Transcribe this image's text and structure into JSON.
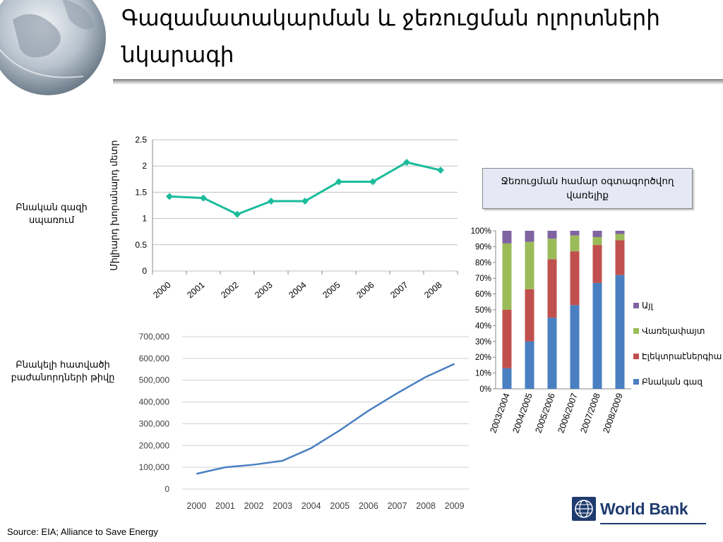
{
  "slide": {
    "title": "Գազամատակարման և ջեռուցման ոլորտների նկարագի",
    "source": "Source: EIA; Alliance to Save Energy",
    "logo_text": "World Bank"
  },
  "labels": {
    "gas_consumption": "Բնական գազի սպառում",
    "households": "Բնակելի հատվածի բաժանորդների թիվը",
    "heating_fuel_box": "Ջեռուցման համար օգտագործվող վառելիք"
  },
  "colors": {
    "line1": "#1abc9c",
    "line2": "#4a7fc1",
    "gas": "#4a7fc1",
    "electricity": "#c0504d",
    "firewood": "#9bbb59",
    "other": "#8064a2",
    "legend_bg": "#e7e8f5"
  },
  "chart_data": [
    {
      "type": "line",
      "x": [
        "2000",
        "2001",
        "2002",
        "2003",
        "2004",
        "2005",
        "2006",
        "2007",
        "2008"
      ],
      "series": [
        {
          "values": [
            1.42,
            1.39,
            1.08,
            1.33,
            1.33,
            1.7,
            1.7,
            2.07,
            1.92
          ]
        }
      ],
      "ylabel": "Միլիարդ խորանարդ մետր",
      "ylim": [
        0,
        2.5
      ],
      "yticks": [
        "0",
        "0.5",
        "1",
        "1.5",
        "2",
        "2.5"
      ],
      "grid": true
    },
    {
      "type": "line",
      "x": [
        "2000",
        "2001",
        "2002",
        "2003",
        "2004",
        "2005",
        "2006",
        "2007",
        "2008",
        "2009"
      ],
      "series": [
        {
          "values": [
            70000,
            100000,
            112000,
            130000,
            188000,
            270000,
            360000,
            440000,
            515000,
            575000
          ]
        }
      ],
      "ylim": [
        0,
        700000
      ],
      "yticks": [
        "0",
        "100,000",
        "200,000",
        "300,000",
        "400,000",
        "500,000",
        "600,000",
        "700,000"
      ],
      "grid": true
    },
    {
      "type": "bar",
      "stacked": true,
      "categories": [
        "2003/2004",
        "2004/2005",
        "2005/2006",
        "2006/2007",
        "2007/2008",
        "2008/2009"
      ],
      "series": [
        {
          "name": "Բնական գազ",
          "values": [
            13,
            30,
            45,
            53,
            67,
            72
          ]
        },
        {
          "name": "Էլեկտրաէներգիա",
          "values": [
            37,
            33,
            37,
            34,
            24,
            22
          ]
        },
        {
          "name": "Վառելափայտ",
          "values": [
            42,
            30,
            13,
            10,
            5,
            4
          ]
        },
        {
          "name": "Այլ",
          "values": [
            8,
            7,
            5,
            3,
            4,
            2
          ]
        }
      ],
      "ylim": [
        0,
        100
      ],
      "yticks": [
        "0%",
        "10%",
        "20%",
        "30%",
        "40%",
        "50%",
        "60%",
        "70%",
        "80%",
        "90%",
        "100%"
      ],
      "legend": "right"
    }
  ]
}
